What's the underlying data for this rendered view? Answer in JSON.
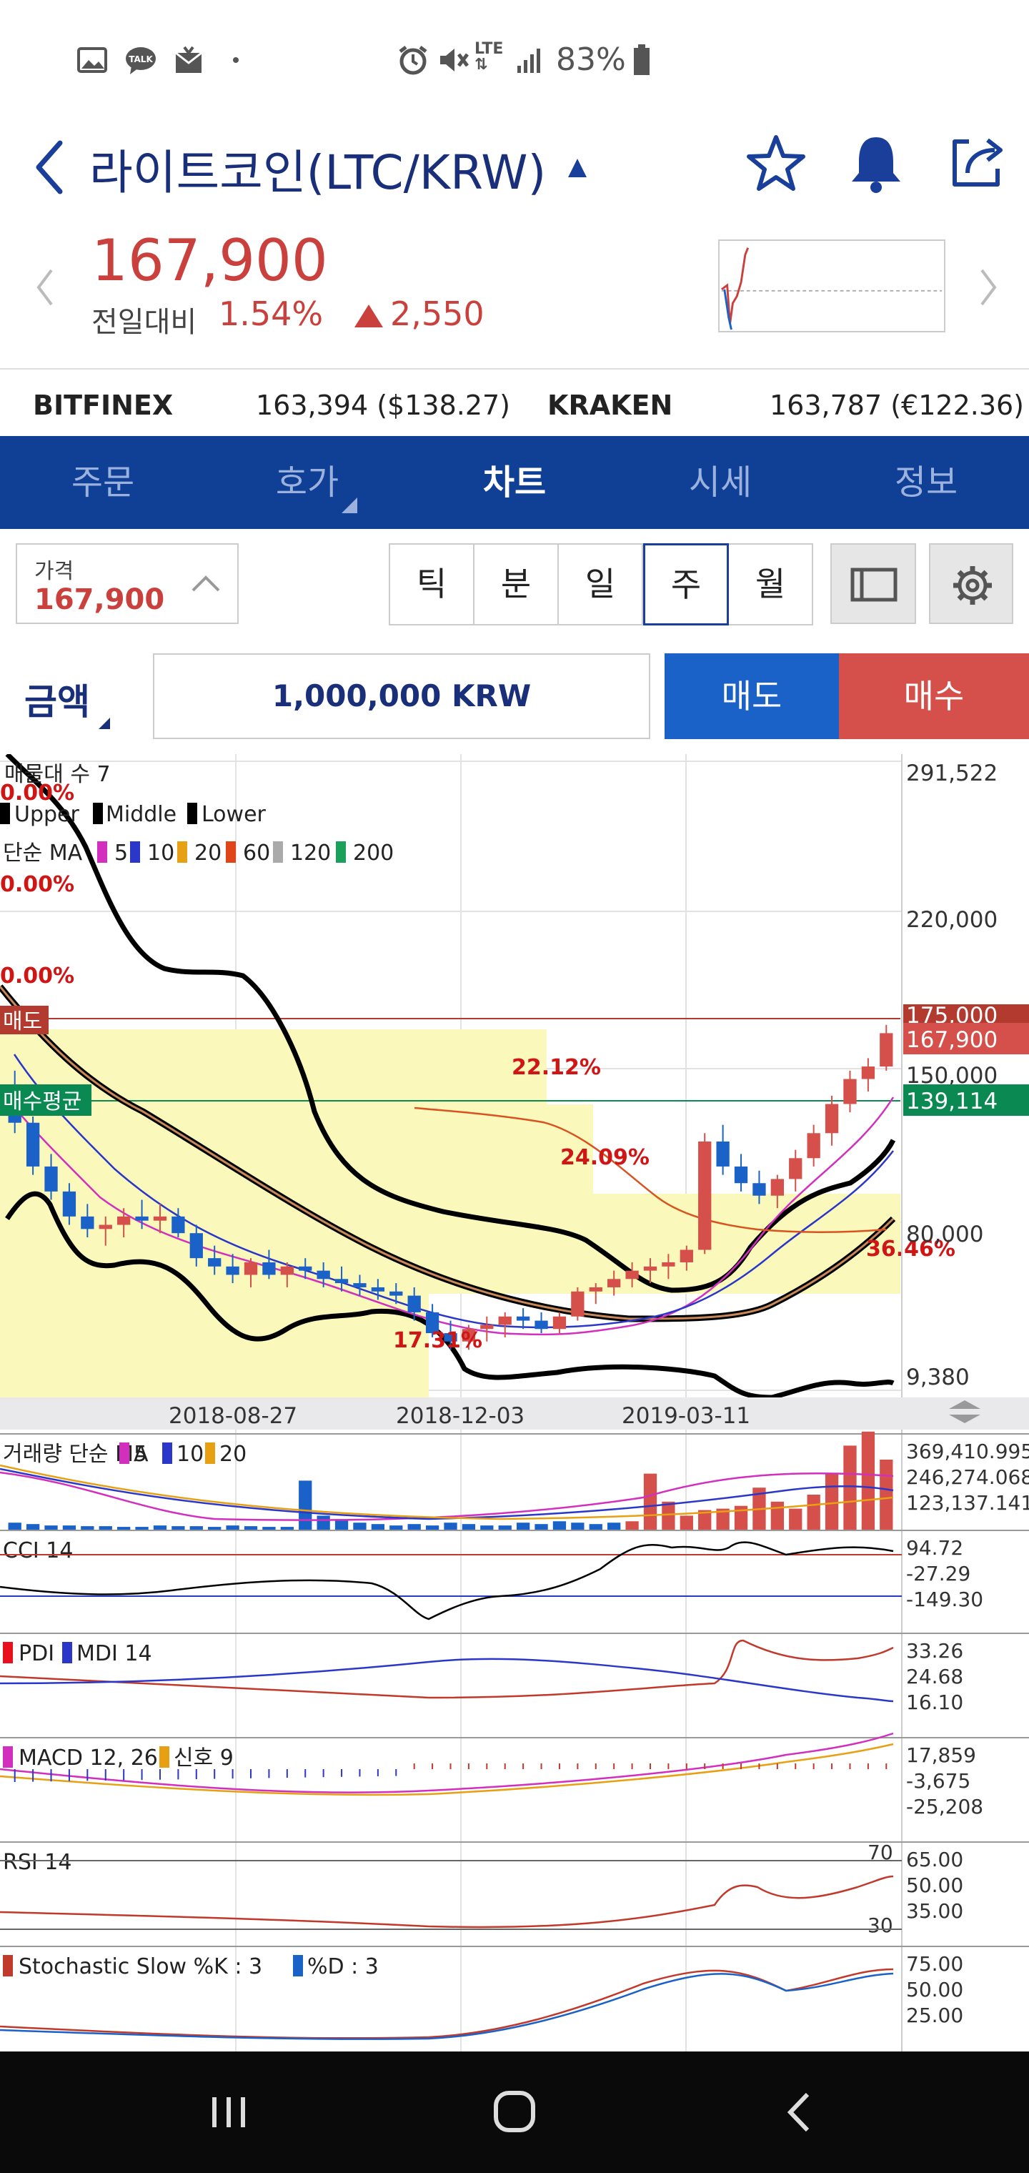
{
  "status_bar": {
    "left_icons": [
      "gallery-icon",
      "talk-icon",
      "mail-icon",
      "dot-icon"
    ],
    "right_icons": [
      "alarm-icon",
      "mute-icon",
      "lte-icon",
      "signal-icon",
      "battery-icon"
    ],
    "lte": "LTE",
    "battery": "83%"
  },
  "header": {
    "title": "라이트코인(LTC/KRW)"
  },
  "price": {
    "current": "167,900",
    "change_label": "전일대비",
    "change_pct": "1.54%",
    "change_amt": "2,550",
    "up_color": "#c9403c"
  },
  "exchanges": [
    {
      "name": "BITFINEX",
      "value": "163,394 ($138.27)"
    },
    {
      "name": "KRAKEN",
      "value": "163,787 (€122.36)"
    }
  ],
  "tabs": [
    "주문",
    "호가",
    "차트",
    "시세",
    "정보"
  ],
  "active_tab": "차트",
  "price_box": {
    "label": "가격",
    "value": "167,900"
  },
  "periods": [
    "틱",
    "분",
    "일",
    "주",
    "월"
  ],
  "active_period": "주",
  "order": {
    "amount_label": "금액",
    "amount_value": "1,000,000 KRW",
    "sell": "매도",
    "buy": "매수",
    "sell_color": "#1a62c8",
    "buy_color": "#d5504a"
  },
  "chart_data": {
    "type": "candlestick",
    "overlay_text": {
      "volume_profile": "매물대 수 7",
      "bollinger": [
        "Upper",
        "Middle",
        "Lower"
      ],
      "ma_label": "단순 MA",
      "ma_periods": [
        "5",
        "10",
        "20",
        "60",
        "120",
        "200"
      ],
      "pct_labels": [
        "0.00%",
        "0.00%",
        "0.00%",
        "22.12%",
        "24.09%",
        "17.31%",
        "36.46%"
      ],
      "sell_line": "매도",
      "avg_buy_line": "매수평균"
    },
    "y_ticks": [
      "291,522",
      "220,000",
      "175,000",
      "150,000",
      "80,000",
      "9,380"
    ],
    "price_tags": {
      "last": "167,900",
      "avg_buy": "139,114"
    },
    "x_ticks": [
      "2018-08-27",
      "2018-12-03",
      "2019-03-11"
    ],
    "candles": [
      [
        140,
        150,
        120,
        125
      ],
      [
        125,
        128,
        100,
        104
      ],
      [
        104,
        110,
        88,
        92
      ],
      [
        92,
        96,
        76,
        80
      ],
      [
        80,
        86,
        70,
        74
      ],
      [
        74,
        80,
        66,
        76
      ],
      [
        76,
        84,
        70,
        80
      ],
      [
        80,
        88,
        74,
        78
      ],
      [
        78,
        86,
        72,
        80
      ],
      [
        80,
        84,
        70,
        72
      ],
      [
        72,
        76,
        56,
        60
      ],
      [
        60,
        66,
        52,
        56
      ],
      [
        56,
        62,
        48,
        52
      ],
      [
        52,
        60,
        46,
        58
      ],
      [
        58,
        64,
        50,
        52
      ],
      [
        52,
        58,
        46,
        56
      ],
      [
        56,
        60,
        50,
        54
      ],
      [
        54,
        58,
        46,
        50
      ],
      [
        50,
        56,
        44,
        48
      ],
      [
        48,
        52,
        42,
        46
      ],
      [
        46,
        50,
        40,
        44
      ],
      [
        44,
        48,
        38,
        42
      ],
      [
        42,
        46,
        30,
        34
      ],
      [
        34,
        38,
        22,
        24
      ],
      [
        24,
        30,
        16,
        20
      ],
      [
        20,
        28,
        16,
        26
      ],
      [
        26,
        32,
        20,
        28
      ],
      [
        28,
        34,
        22,
        32
      ],
      [
        32,
        36,
        26,
        30
      ],
      [
        30,
        34,
        24,
        26
      ],
      [
        26,
        34,
        24,
        32
      ],
      [
        32,
        46,
        30,
        44
      ],
      [
        44,
        48,
        38,
        46
      ],
      [
        46,
        54,
        42,
        50
      ],
      [
        50,
        58,
        46,
        54
      ],
      [
        54,
        60,
        48,
        56
      ],
      [
        56,
        62,
        50,
        58
      ],
      [
        58,
        66,
        54,
        64
      ],
      [
        64,
        120,
        62,
        116
      ],
      [
        116,
        124,
        100,
        104
      ],
      [
        104,
        110,
        92,
        96
      ],
      [
        96,
        102,
        86,
        90
      ],
      [
        90,
        100,
        84,
        98
      ],
      [
        98,
        112,
        92,
        108
      ],
      [
        108,
        124,
        104,
        120
      ],
      [
        120,
        138,
        114,
        134
      ],
      [
        134,
        150,
        130,
        146
      ],
      [
        146,
        156,
        140,
        152
      ],
      [
        152,
        172,
        150,
        168
      ]
    ],
    "indicators": [
      {
        "name": "거래량 단순 MA",
        "periods": [
          "5",
          "10",
          "20"
        ],
        "ticks": [
          "369,410.995",
          "246,274.068",
          "123,137.141"
        ]
      },
      {
        "name": "CCI 14",
        "ticks": [
          "94.72",
          "-27.29",
          "-149.30"
        ]
      },
      {
        "name": "PDI",
        "second": "MDI 14",
        "ticks": [
          "33.26",
          "24.68",
          "16.10"
        ]
      },
      {
        "name": "MACD 12, 26",
        "second": "신호 9",
        "ticks": [
          "17,859",
          "-3,675",
          "-25,208"
        ]
      },
      {
        "name": "RSI 14",
        "ticks": [
          "65.00",
          "50.00",
          "35.00"
        ],
        "levels": [
          "70",
          "30"
        ]
      },
      {
        "name": "Stochastic Slow %K : 3",
        "second": "%D : 3",
        "ticks": [
          "75.00",
          "50.00",
          "25.00"
        ]
      }
    ]
  }
}
